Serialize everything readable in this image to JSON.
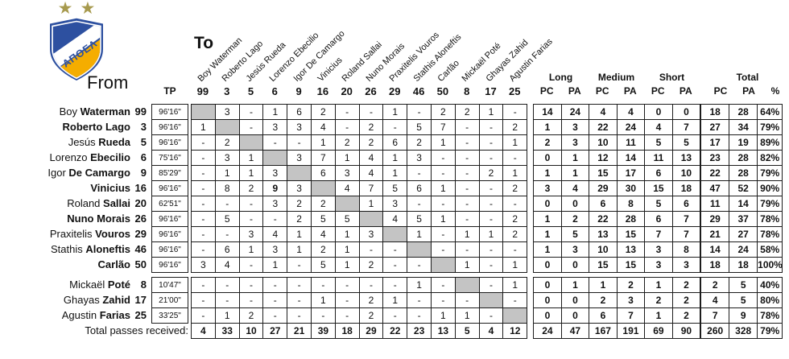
{
  "logo": {
    "team": "ΑΠΟΕΛ",
    "stars": "★★",
    "blue": "#2d50a0",
    "yellow": "#f5ad00",
    "star_gold": "#a79a4e"
  },
  "labels": {
    "to": "To",
    "from": "From",
    "tp": "TP",
    "groups": [
      "Long",
      "Medium",
      "Short",
      "Total"
    ],
    "stat_cols": [
      "PC",
      "PA",
      "PC",
      "PA",
      "PC",
      "PA"
    ],
    "total_cols": [
      "PC",
      "PA",
      "%"
    ],
    "totals_row_label": "Total passes received:"
  },
  "chart_data": {
    "type": "table",
    "to_columns": [
      {
        "name": "Boy Waterman",
        "num": "99"
      },
      {
        "name": "Roberto Lago",
        "num": "3"
      },
      {
        "name": "Jesús Rueda",
        "num": "5"
      },
      {
        "name": "Lorenzo Ebecilio",
        "num": "6"
      },
      {
        "name": "Igor De Camargo",
        "num": "9"
      },
      {
        "name": "Vinicius",
        "num": "16"
      },
      {
        "name": "Roland Sallai",
        "num": "20"
      },
      {
        "name": "Nuno Morais",
        "num": "26"
      },
      {
        "name": "Praxitelis Vouros",
        "num": "29"
      },
      {
        "name": "Stathis Aloneftis",
        "num": "46"
      },
      {
        "name": "Carlão",
        "num": "50"
      },
      {
        "name": "Mickaël Poté",
        "num": "8"
      },
      {
        "name": "Ghayas Zahid",
        "num": "17"
      },
      {
        "name": "Agustin Farias",
        "num": "25"
      }
    ],
    "stat_headers": [
      "Long PC",
      "Long PA",
      "Medium PC",
      "Medium PA",
      "Short PC",
      "Short PA",
      "Total PC",
      "Total PA",
      "%"
    ],
    "rows": [
      {
        "first": "Boy",
        "last": "Waterman",
        "num": "99",
        "tp": "96'16\"",
        "sub": false,
        "passes": [
          null,
          "3",
          "-",
          "1",
          "6",
          "2",
          "-",
          "-",
          "1",
          "-",
          "2",
          "2",
          "1",
          "-"
        ],
        "stats": [
          "14",
          "24",
          "4",
          "4",
          "0",
          "0",
          "18",
          "28",
          "64%"
        ]
      },
      {
        "first": "",
        "last": "Roberto Lago",
        "num": "3",
        "tp": "96'16\"",
        "sub": false,
        "passes": [
          "1",
          null,
          "-",
          "3",
          "3",
          "4",
          "-",
          "2",
          "-",
          "5",
          "7",
          "-",
          "-",
          "2"
        ],
        "stats": [
          "1",
          "3",
          "22",
          "24",
          "4",
          "7",
          "27",
          "34",
          "79%"
        ]
      },
      {
        "first": "Jesús",
        "last": "Rueda",
        "num": "5",
        "tp": "96'16\"",
        "sub": false,
        "passes": [
          "-",
          "2",
          null,
          "-",
          "-",
          "1",
          "2",
          "2",
          "6",
          "2",
          "1",
          "-",
          "-",
          "1"
        ],
        "stats": [
          "2",
          "3",
          "10",
          "11",
          "5",
          "5",
          "17",
          "19",
          "89%"
        ]
      },
      {
        "first": "Lorenzo",
        "last": "Ebecilio",
        "num": "6",
        "tp": "75'16\"",
        "sub": false,
        "passes": [
          "-",
          "3",
          "1",
          null,
          "3",
          "7",
          "1",
          "4",
          "1",
          "3",
          "-",
          "-",
          "-",
          "-"
        ],
        "stats": [
          "0",
          "1",
          "12",
          "14",
          "11",
          "13",
          "23",
          "28",
          "82%"
        ]
      },
      {
        "first": "Igor",
        "last": "De Camargo",
        "num": "9",
        "tp": "85'29\"",
        "sub": false,
        "passes": [
          "-",
          "1",
          "1",
          "3",
          null,
          "6",
          "3",
          "4",
          "1",
          "-",
          "-",
          "-",
          "2",
          "1"
        ],
        "stats": [
          "1",
          "1",
          "15",
          "17",
          "6",
          "10",
          "22",
          "28",
          "79%"
        ]
      },
      {
        "first": "",
        "last": "Vinicius",
        "num": "16",
        "tp": "96'16\"",
        "sub": false,
        "passes": [
          "-",
          "8",
          "2",
          "9",
          "3",
          null,
          "4",
          "7",
          "5",
          "6",
          "1",
          "-",
          "-",
          "2"
        ],
        "stats": [
          "3",
          "4",
          "29",
          "30",
          "15",
          "18",
          "47",
          "52",
          "90%"
        ]
      },
      {
        "first": "Roland",
        "last": "Sallai",
        "num": "20",
        "tp": "62'51\"",
        "sub": false,
        "passes": [
          "-",
          "-",
          "-",
          "3",
          "2",
          "2",
          null,
          "1",
          "3",
          "-",
          "-",
          "-",
          "-",
          "-"
        ],
        "stats": [
          "0",
          "0",
          "6",
          "8",
          "5",
          "6",
          "11",
          "14",
          "79%"
        ]
      },
      {
        "first": "",
        "last": "Nuno Morais",
        "num": "26",
        "tp": "96'16\"",
        "sub": false,
        "passes": [
          "-",
          "5",
          "-",
          "-",
          "2",
          "5",
          "5",
          null,
          "4",
          "5",
          "1",
          "-",
          "-",
          "2"
        ],
        "stats": [
          "1",
          "2",
          "22",
          "28",
          "6",
          "7",
          "29",
          "37",
          "78%"
        ]
      },
      {
        "first": "Praxitelis",
        "last": "Vouros",
        "num": "29",
        "tp": "96'16\"",
        "sub": false,
        "passes": [
          "-",
          "-",
          "3",
          "4",
          "1",
          "4",
          "1",
          "3",
          null,
          "1",
          "-",
          "1",
          "1",
          "2"
        ],
        "stats": [
          "1",
          "5",
          "13",
          "15",
          "7",
          "7",
          "21",
          "27",
          "78%"
        ]
      },
      {
        "first": "Stathis",
        "last": "Aloneftis",
        "num": "46",
        "tp": "96'16\"",
        "sub": false,
        "passes": [
          "-",
          "6",
          "1",
          "3",
          "1",
          "2",
          "1",
          "-",
          "-",
          null,
          "-",
          "-",
          "-",
          "-"
        ],
        "stats": [
          "1",
          "3",
          "10",
          "13",
          "3",
          "8",
          "14",
          "24",
          "58%"
        ]
      },
      {
        "first": "",
        "last": "Carlão",
        "num": "50",
        "tp": "96'16\"",
        "sub": false,
        "passes": [
          "3",
          "4",
          "-",
          "1",
          "-",
          "5",
          "1",
          "2",
          "-",
          "-",
          null,
          "1",
          "-",
          "1"
        ],
        "stats": [
          "0",
          "0",
          "15",
          "15",
          "3",
          "3",
          "18",
          "18",
          "100%"
        ]
      },
      {
        "first": "Mickaël",
        "last": "Poté",
        "num": "8",
        "tp": "10'47\"",
        "sub": true,
        "passes": [
          "-",
          "-",
          "-",
          "-",
          "-",
          "-",
          "-",
          "-",
          "-",
          "1",
          "-",
          null,
          "-",
          "1"
        ],
        "stats": [
          "0",
          "1",
          "1",
          "2",
          "1",
          "2",
          "2",
          "5",
          "40%"
        ]
      },
      {
        "first": "Ghayas",
        "last": "Zahid",
        "num": "17",
        "tp": "21'00\"",
        "sub": true,
        "passes": [
          "-",
          "-",
          "-",
          "-",
          "-",
          "1",
          "-",
          "2",
          "1",
          "-",
          "-",
          "-",
          null,
          "-"
        ],
        "stats": [
          "0",
          "0",
          "2",
          "3",
          "2",
          "2",
          "4",
          "5",
          "80%"
        ]
      },
      {
        "first": "Agustin",
        "last": "Farias",
        "num": "25",
        "tp": "33'25\"",
        "sub": true,
        "passes": [
          "-",
          "1",
          "2",
          "-",
          "-",
          "-",
          "-",
          "2",
          "-",
          "-",
          "1",
          "1",
          "-",
          null
        ],
        "stats": [
          "0",
          "0",
          "6",
          "7",
          "1",
          "2",
          "7",
          "9",
          "78%"
        ]
      }
    ],
    "emphasis_cells": [
      {
        "row": 5,
        "col": 3
      }
    ],
    "totals_row": {
      "received": [
        "4",
        "33",
        "10",
        "27",
        "21",
        "39",
        "18",
        "29",
        "22",
        "23",
        "13",
        "5",
        "4",
        "12"
      ],
      "stats": [
        "24",
        "47",
        "167",
        "191",
        "69",
        "90",
        "260",
        "328",
        "79%"
      ]
    }
  }
}
